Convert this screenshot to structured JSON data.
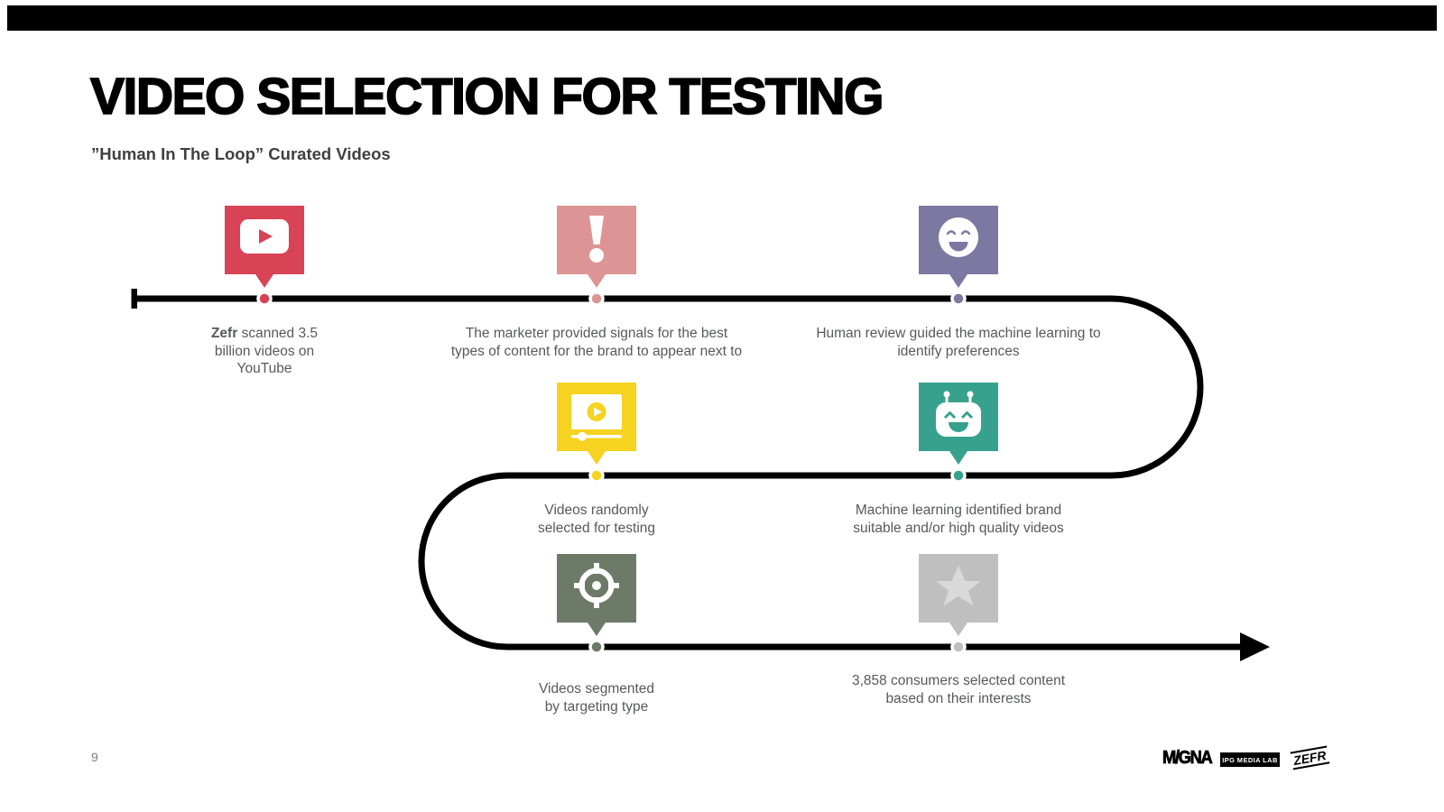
{
  "slide": {
    "title": "VIDEO SELECTION FOR TESTING",
    "subtitle": "”Human In The Loop” Curated Videos",
    "page_number": "9"
  },
  "flow": {
    "steps": [
      {
        "id": "scan",
        "icon": "youtube-play-icon",
        "color": "#d84356",
        "caption_bold": "Zefr",
        "caption": " scanned 3.5\nbillion videos on\nYouTube"
      },
      {
        "id": "signals",
        "icon": "exclamation-icon",
        "color": "#dd9494",
        "caption_bold": "",
        "caption": "The marketer provided signals for the best\ntypes of content for the brand to appear next to"
      },
      {
        "id": "human-review",
        "icon": "smiley-face-icon",
        "color": "#7b79a1",
        "caption_bold": "",
        "caption": "Human review guided the machine learning to\nidentify preferences"
      },
      {
        "id": "ml-identified",
        "icon": "robot-icon",
        "color": "#38a18e",
        "caption_bold": "",
        "caption": "Machine learning identified brand\nsuitable and/or high quality videos"
      },
      {
        "id": "random-selected",
        "icon": "video-player-icon",
        "color": "#f5d320",
        "caption_bold": "",
        "caption": "Videos randomly\nselected for testing"
      },
      {
        "id": "segmented",
        "icon": "target-icon",
        "color": "#6e7a68",
        "caption_bold": "",
        "caption": "Videos segmented\nby targeting type"
      },
      {
        "id": "consumers",
        "icon": "star-icon",
        "color": "#bfbfbf",
        "star_color": "#d9d9d9",
        "caption_bold": "",
        "caption": "3,858 consumers selected content\nbased on their interests"
      }
    ]
  },
  "footer": {
    "logos": {
      "magna": "M/GNA",
      "ipg": "IPG MEDIA LAB",
      "zefr": "ZEFR"
    }
  }
}
